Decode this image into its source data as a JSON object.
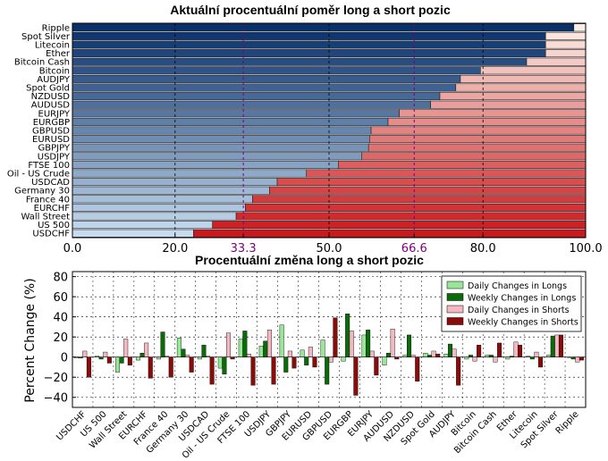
{
  "chart_data": [
    {
      "type": "bar",
      "orientation": "horizontal-stacked",
      "title": "Aktuální procentuální poměr long a short pozic",
      "categories": [
        "Ripple",
        "Spot Silver",
        "Litecoin",
        "Ether",
        "Bitcoin Cash",
        "Bitcoin",
        "AUDJPY",
        "Spot Gold",
        "NZDUSD",
        "AUDUSD",
        "EURJPY",
        "EURGBP",
        "GBPUSD",
        "EURUSD",
        "GBPJPY",
        "USDJPY",
        "FTSE 100",
        "Oil - US Crude",
        "USDCAD",
        "Germany 30",
        "France 40",
        "EURCHF",
        "Wall Street",
        "US 500",
        "USDCHF"
      ],
      "long_percent": [
        97.7,
        92.2,
        92.2,
        92.2,
        88.5,
        79.5,
        75.6,
        74.7,
        71.6,
        69.8,
        63.7,
        61.5,
        58.2,
        57.9,
        57.7,
        56.4,
        51.8,
        45.6,
        39.9,
        38.4,
        35.1,
        33.7,
        31.9,
        27.3,
        23.6
      ],
      "xlim": [
        0,
        100
      ],
      "xticks": [
        "0.0",
        "20.0",
        "33.3",
        "50.0",
        "66.6",
        "80.0",
        "100.0"
      ],
      "highlight_ticks": [
        "33.3",
        "66.6"
      ],
      "grid": true,
      "colors": {
        "long_dark": "#08306b",
        "long_light": "#c6dbef",
        "short_light": "#fdeee6",
        "short_dark": "#cb181d",
        "highlight": "#7a0177"
      }
    },
    {
      "type": "bar",
      "title": "Procentuální změna long a short pozic",
      "ylabel": "Percent Change (%)",
      "ylim": [
        -50,
        85
      ],
      "yticks": [
        "80",
        "60",
        "40",
        "20",
        "0",
        "−20",
        "−40"
      ],
      "legend_position": "top-right",
      "categories": [
        "USDCHF",
        "US 500",
        "Wall Street",
        "EURCHF",
        "France 40",
        "Germany 30",
        "USDCAD",
        "Oil - US Crude",
        "FTSE 100",
        "USDJPY",
        "GBPJPY",
        "EURUSD",
        "GBPUSD",
        "EURGBP",
        "EURJPY",
        "AUDUSD",
        "NZDUSD",
        "Spot Gold",
        "AUDJPY",
        "Bitcoin",
        "Bitcoin Cash",
        "Ether",
        "Litecoin",
        "Spot Silver",
        "Ripple"
      ],
      "series": [
        {
          "name": "Daily Changes in Longs",
          "color": "#98e698",
          "values": [
            -1,
            1,
            -15,
            -3,
            -2,
            19,
            -2,
            -11,
            18,
            11,
            32,
            7,
            17,
            -4,
            22,
            -8,
            2,
            4,
            3,
            -2,
            2,
            -2,
            1,
            2,
            0
          ]
        },
        {
          "name": "Weekly Changes in Longs",
          "color": "#0b6b0b",
          "values": [
            -1,
            -2,
            -6,
            4,
            25,
            8,
            12,
            -17,
            26,
            16,
            -15,
            -8,
            -27,
            43,
            27,
            4,
            22,
            2,
            13,
            2,
            2,
            1,
            -2,
            21,
            -2
          ]
        },
        {
          "name": "Daily Changes in Shorts",
          "color": "#f4b8c2",
          "values": [
            6,
            5,
            18,
            14,
            1,
            2,
            1,
            24,
            3,
            27,
            6,
            10,
            -5,
            26,
            6,
            28,
            2,
            6,
            8,
            -4,
            -5,
            15,
            5,
            22,
            -5
          ]
        },
        {
          "name": "Weekly Changes in Shorts",
          "color": "#8b0a0a",
          "values": [
            -20,
            -6,
            -8,
            -21,
            -20,
            -15,
            -27,
            -2,
            -28,
            -27,
            -11,
            -10,
            39,
            -38,
            -18,
            -2,
            -24,
            3,
            -28,
            12,
            14,
            12,
            -10,
            22,
            -3
          ]
        }
      ]
    }
  ]
}
